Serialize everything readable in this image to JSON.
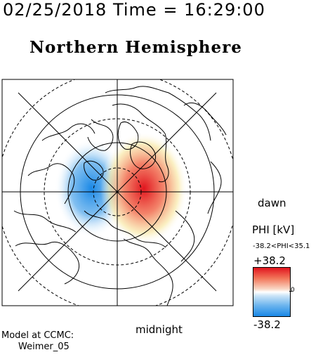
{
  "header": {
    "timestamp": "02/25/2018 Time = 16:29:00",
    "hemisphere": "Northern Hemisphere"
  },
  "map": {
    "orientation_labels": {
      "right": "dawn",
      "bottom": "midnight"
    },
    "potential_cells": [
      {
        "sign": "negative",
        "side": "dusk",
        "color": "#1a88e6"
      },
      {
        "sign": "positive",
        "side": "dawn",
        "color": "#e1151e"
      }
    ]
  },
  "colorbar": {
    "title": "PHI [kV]",
    "range_text": "-38.2<PHI<35.1",
    "max_label": "+38.2",
    "min_label": "-38.2",
    "mid_label": "0",
    "colors": {
      "max": "#e1151e",
      "mid": "#ffffff",
      "min": "#1a88e6"
    }
  },
  "footer": {
    "model_line1": "Model at CCMC:",
    "model_line2": "Weimer_05"
  }
}
